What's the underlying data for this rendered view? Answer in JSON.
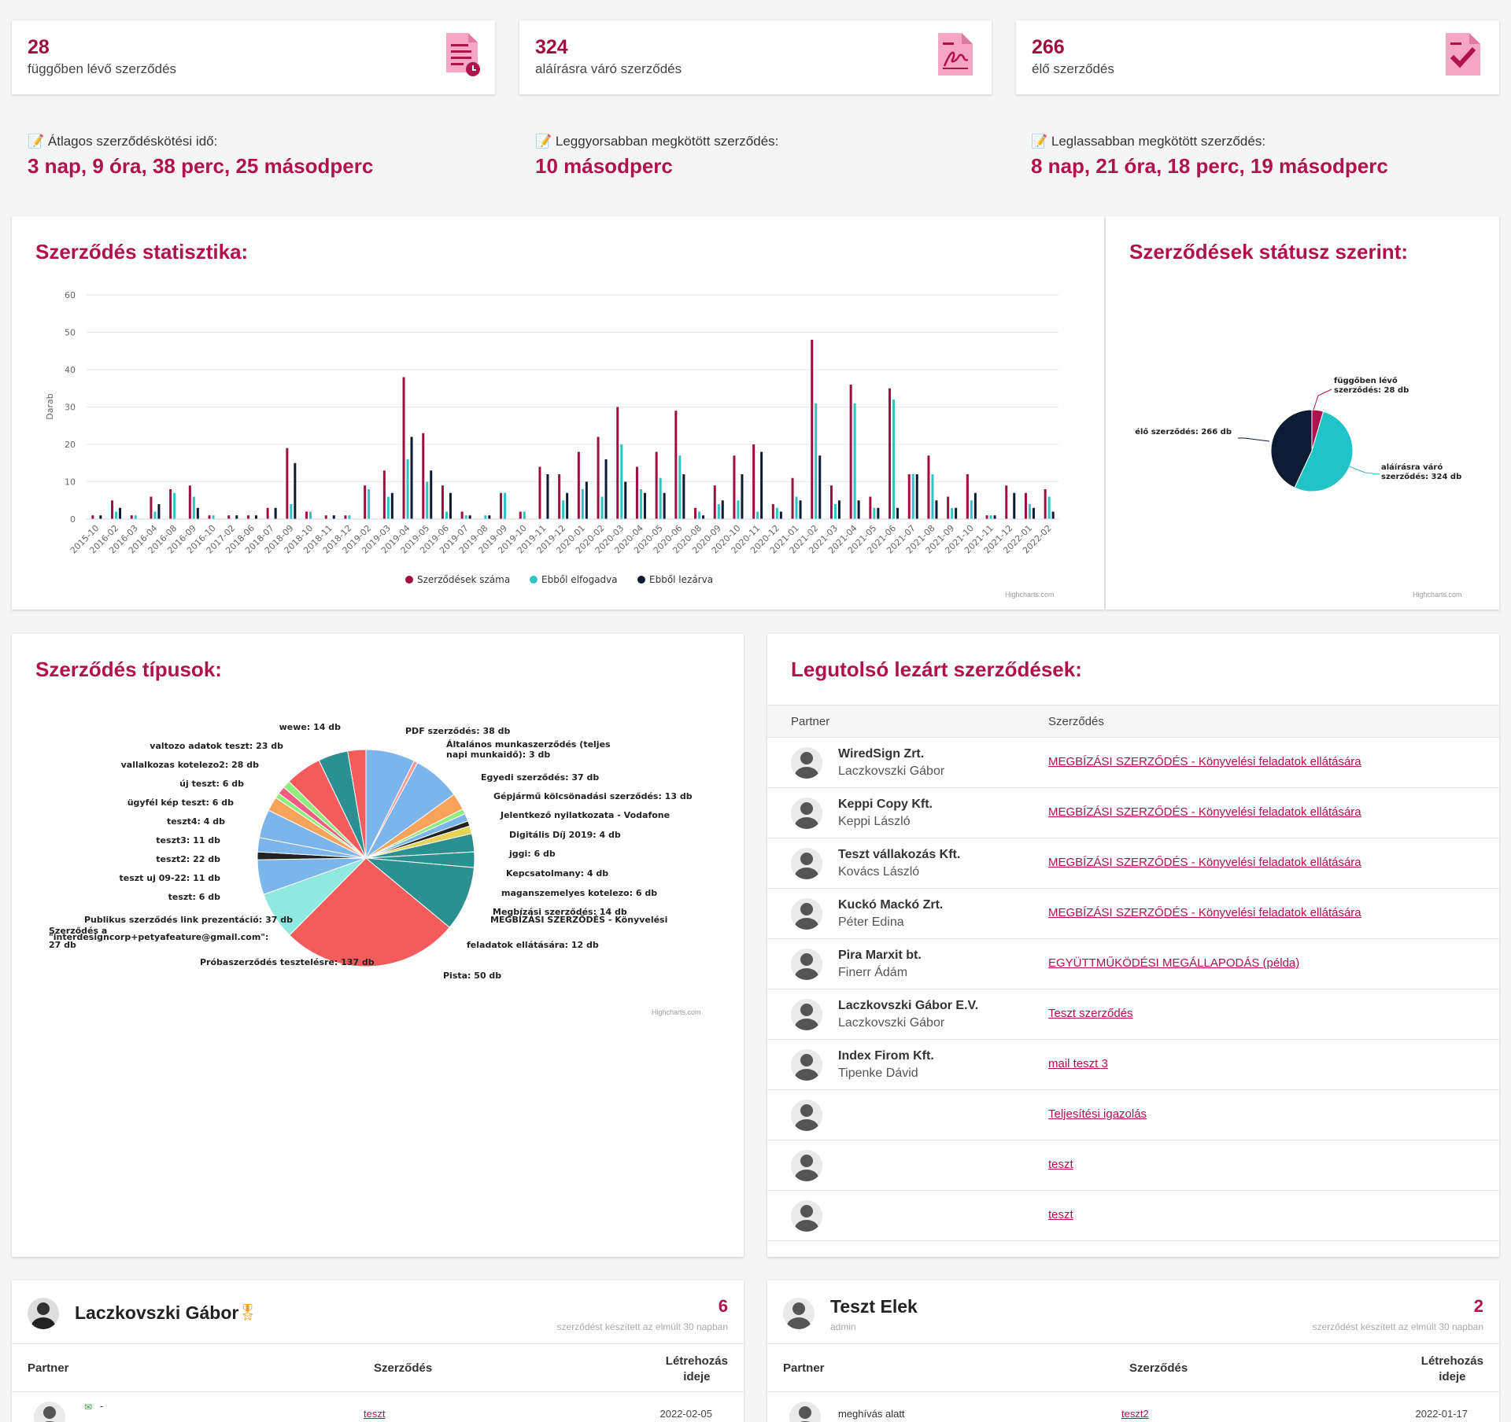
{
  "kpis": [
    {
      "value": "28",
      "label": "függőben lévő szerződés",
      "icon": "pending-document-icon"
    },
    {
      "value": "324",
      "label": "aláírásra váró szerződés",
      "icon": "signature-document-icon"
    },
    {
      "value": "266",
      "label": "élő szerződés",
      "icon": "approved-document-icon"
    }
  ],
  "averages": [
    {
      "label": "Átlagos szerződéskötési idő:",
      "value": "3 nap, 9 óra, 38 perc, 25 másodperc"
    },
    {
      "label": "Leggyorsabban megkötött szerződés:",
      "value": "10 másodperc"
    },
    {
      "label": "Leglassabban megkötött szerződés:",
      "value": "8 nap, 21 óra, 18 perc, 19 másodperc"
    }
  ],
  "stats_panel": {
    "title": "Szerződés statisztika:",
    "credit": "Highcharts.com"
  },
  "status_panel": {
    "title": "Szerződések státusz szerint:",
    "credit": "Highcharts.com"
  },
  "types_panel": {
    "title": "Szerződés típusok:",
    "credit": "Highcharts.com"
  },
  "colors": {
    "accent": "#b0124e",
    "series1": "#9e0e42",
    "series2": "#2ec4c6",
    "series3": "#0c1b33"
  },
  "chart_data": [
    {
      "type": "bar",
      "ylabel": "Darab",
      "ylim": [
        0,
        60
      ],
      "yticks": [
        "0",
        "10",
        "20",
        "30",
        "40",
        "50",
        "60"
      ],
      "grid": true,
      "legend_position": "bottom",
      "categories": [
        "2015-10",
        "2016-02",
        "2016-03",
        "2016-04",
        "2016-08",
        "2016-09",
        "2016-10",
        "2017-02",
        "2018-06",
        "2018-07",
        "2018-09",
        "2018-10",
        "2018-11",
        "2018-12",
        "2019-02",
        "2019-03",
        "2019-04",
        "2019-05",
        "2019-06",
        "2019-07",
        "2019-08",
        "2019-09",
        "2019-10",
        "2019-11",
        "2019-12",
        "2020-01",
        "2020-02",
        "2020-03",
        "2020-04",
        "2020-05",
        "2020-06",
        "2020-08",
        "2020-09",
        "2020-10",
        "2020-11",
        "2020-12",
        "2021-01",
        "2021-02",
        "2021-03",
        "2021-04",
        "2021-05",
        "2021-06",
        "2021-07",
        "2021-08",
        "2021-09",
        "2021-10",
        "2021-11",
        "2021-12",
        "2022-01",
        "2022-02"
      ],
      "series": [
        {
          "name": "Szerződések száma",
          "values": [
            1,
            5,
            1,
            6,
            8,
            9,
            1,
            1,
            1,
            3,
            19,
            2,
            1,
            1,
            9,
            13,
            38,
            23,
            9,
            2,
            0,
            7,
            2,
            14,
            12,
            18,
            22,
            30,
            14,
            18,
            29,
            3,
            9,
            17,
            20,
            4,
            11,
            48,
            9,
            36,
            6,
            35,
            12,
            17,
            6,
            12,
            1,
            9,
            7,
            8
          ]
        },
        {
          "name": "Ebből elfogadva",
          "values": [
            0,
            2,
            1,
            2,
            7,
            6,
            1,
            0,
            0,
            0,
            4,
            2,
            0,
            1,
            8,
            6,
            16,
            10,
            2,
            1,
            1,
            7,
            2,
            0,
            5,
            8,
            6,
            20,
            8,
            11,
            17,
            2,
            4,
            5,
            2,
            3,
            6,
            31,
            4,
            31,
            3,
            32,
            12,
            12,
            3,
            5,
            1,
            0,
            4,
            6
          ]
        },
        {
          "name": "Ebből lezárva",
          "values": [
            1,
            3,
            0,
            4,
            0,
            3,
            0,
            1,
            1,
            3,
            15,
            0,
            1,
            0,
            0,
            7,
            22,
            13,
            7,
            1,
            1,
            0,
            0,
            12,
            7,
            10,
            16,
            10,
            7,
            7,
            12,
            1,
            5,
            12,
            18,
            2,
            5,
            17,
            5,
            5,
            3,
            3,
            12,
            5,
            3,
            7,
            1,
            7,
            3,
            2
          ]
        }
      ]
    },
    {
      "type": "pie",
      "slices": [
        {
          "label": "függőben lévő szerződés",
          "value": 28
        },
        {
          "label": "aláírásra váró szerződés",
          "value": 324
        },
        {
          "label": "élő szerződés",
          "value": 266
        }
      ],
      "data_labels": [
        "függőben lévő szerződés: 28 db",
        "aláírásra váró szerződés: 324 db",
        "élő szerződés: 266 db"
      ]
    },
    {
      "type": "pie",
      "slices": [
        {
          "label": "PDF szerződés",
          "value": 38
        },
        {
          "label": "Általános munkaszerződés (teljes napi munkaidő)",
          "value": 3
        },
        {
          "label": "Egyedi szerződés",
          "value": 37
        },
        {
          "label": "Gépjármű kölcsönadási szerződés",
          "value": 13
        },
        {
          "label": "Jelentkező nyilatkozata - Vodafone Digitális Díj 2019",
          "value": 4
        },
        {
          "label": "jggi",
          "value": 6
        },
        {
          "label": "Kepcsatolmany",
          "value": 4
        },
        {
          "label": "maganszemelyes kotelezo",
          "value": 6
        },
        {
          "label": "Megbízási szerződés",
          "value": 14
        },
        {
          "label": "MEGBÍZÁSI SZERZŐDÉS - Könyvelési feladatok ellátására",
          "value": 12
        },
        {
          "label": "Pista",
          "value": 50
        },
        {
          "label": "Próbaszerződés tesztelésre",
          "value": 137
        },
        {
          "label": "Publikus szerződés link prezentáció",
          "value": 37
        },
        {
          "label": "Szerződés a \"interdesigncorp+petyafeature@gmail.com\"",
          "value": 27
        },
        {
          "label": "teszt",
          "value": 6
        },
        {
          "label": "teszt uj 09-22",
          "value": 11
        },
        {
          "label": "teszt2",
          "value": 22
        },
        {
          "label": "teszt3",
          "value": 11
        },
        {
          "label": "teszt4",
          "value": 4
        },
        {
          "label": "ügyfél kép teszt",
          "value": 6
        },
        {
          "label": "új teszt",
          "value": 6
        },
        {
          "label": "vallalkozas kotelezo2",
          "value": 28
        },
        {
          "label": "valtozo adatok teszt",
          "value": 23
        },
        {
          "label": "wewe",
          "value": 14
        }
      ],
      "data_labels": [
        "PDF szerződés: 38 db",
        "Általános munkaszerződés (teljes",
        "napi munkaidő): 3 db",
        "Egyedi szerződés: 37 db",
        "Gépjármű kölcsönadási szerződés: 13 db",
        "Jelentkező nyilatkozata - Vodafone",
        "Digitális Díj 2019: 4 db",
        "jggi: 6 db",
        "Kepcsatolmany: 4 db",
        "maganszemelyes kotelezo: 6 db",
        "Megbízási szerződés: 14 db",
        "MEGBÍZÁSI SZERZŐDÉS - Könyvelési",
        "feladatok ellátására: 12 db",
        "Pista: 50 db",
        "Próbaszerződés tesztelésre: 137 db",
        "Publikus szerződés link prezentáció: 37 db",
        "Szerződés a",
        "\"interdesigncorp+petyafeature@gmail.com\":",
        "27 db",
        "teszt: 6 db",
        "teszt uj 09-22: 11 db",
        "teszt2: 22 db",
        "teszt3: 11 db",
        "teszt4: 4 db",
        "ügyfél kép teszt: 6 db",
        "új teszt: 6 db",
        "vallalkozas kotelezo2: 28 db",
        "valtozo adatok teszt: 23 db",
        "wewe: 14 db"
      ]
    }
  ],
  "latest": {
    "title": "Legutolsó lezárt szerződések:",
    "col_partner": "Partner",
    "col_contract": "Szerződés",
    "rows": [
      {
        "company": "WiredSign Zrt.",
        "person": "Laczkovszki Gábor",
        "contract": "MEGBÍZÁSI SZERZŐDÉS - Könyvelési feladatok ellátására"
      },
      {
        "company": "Keppi Copy Kft.",
        "person": "Keppi László",
        "contract": "MEGBÍZÁSI SZERZŐDÉS - Könyvelési feladatok ellátására"
      },
      {
        "company": "Teszt vállakozás Kft.",
        "person": "Kovács László",
        "contract": "MEGBÍZÁSI SZERZŐDÉS - Könyvelési feladatok ellátására"
      },
      {
        "company": "Kuckó Mackó Zrt.",
        "person": "Péter Edina",
        "contract": "MEGBÍZÁSI SZERZŐDÉS - Könyvelési feladatok ellátására"
      },
      {
        "company": "Pira Marxit bt.",
        "person": "Finerr Ádám",
        "contract": "EGYÜTTMŰKÖDÉSI MEGÁLLAPODÁS (példa)"
      },
      {
        "company": "Laczkovszki Gábor E.V.",
        "person": "Laczkovszki Gábor",
        "contract": "Teszt szerződés"
      },
      {
        "company": "Index Firom Kft.",
        "person": "Tipenke Dávid",
        "contract": "mail teszt 3"
      },
      {
        "company": "",
        "person": "",
        "contract": "Teljesítési igazolás"
      },
      {
        "company": "",
        "person": "",
        "contract": "teszt"
      },
      {
        "company": "",
        "person": "",
        "contract": "teszt"
      }
    ]
  },
  "users": [
    {
      "name": "Laczkovszki Gábor",
      "role": "",
      "count": "6",
      "subtitle": "szerződést készített az elmúlt 30 napban",
      "col_partner": "Partner",
      "col_contract": "Szerződés",
      "col_created_1": "Létrehozás",
      "col_created_2": "ideje",
      "row": {
        "partner": "-",
        "contract": "teszt",
        "date": "2022-02-05"
      }
    },
    {
      "name": "Teszt Elek",
      "role": "admin",
      "count": "2",
      "subtitle": "szerződést készített az elmúlt 30 napban",
      "col_partner": "Partner",
      "col_contract": "Szerződés",
      "col_created_1": "Létrehozás",
      "col_created_2": "ideje",
      "row": {
        "partner": "meghívás alatt",
        "contract": "teszt2",
        "date": "2022-01-17"
      }
    }
  ]
}
